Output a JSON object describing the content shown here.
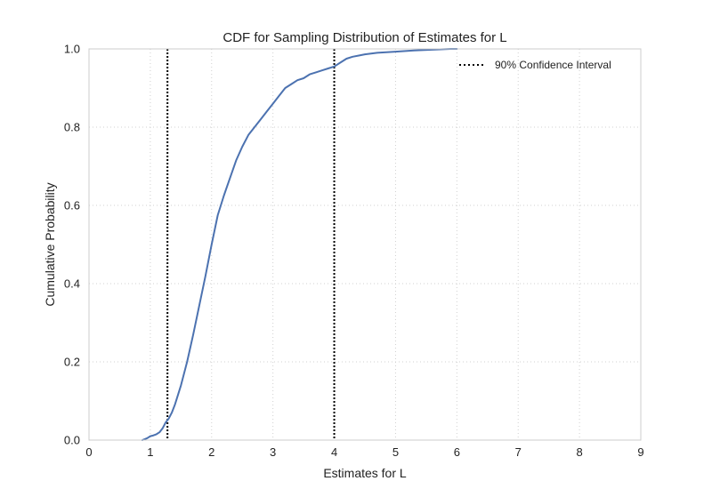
{
  "chart_data": {
    "type": "line",
    "title": "CDF for Sampling Distribution of Estimates for L",
    "xlabel": "Estimates for L",
    "ylabel": "Cumulative Probability",
    "xlim": [
      0,
      9
    ],
    "ylim": [
      0,
      1.0
    ],
    "grid": true,
    "x_ticks": [
      0,
      1,
      2,
      3,
      4,
      5,
      6,
      7,
      8,
      9
    ],
    "x_tick_labels": [
      "0",
      "1",
      "2",
      "3",
      "4",
      "5",
      "6",
      "7",
      "8",
      "9"
    ],
    "y_ticks": [
      0.0,
      0.2,
      0.4,
      0.6,
      0.8,
      1.0
    ],
    "y_tick_labels": [
      "0.0",
      "0.2",
      "0.4",
      "0.6",
      "0.8",
      "1.0"
    ],
    "series": [
      {
        "color": "#4c72b0",
        "x": [
          0.87,
          0.95,
          1.0,
          1.05,
          1.1,
          1.15,
          1.2,
          1.25,
          1.3,
          1.35,
          1.4,
          1.45,
          1.5,
          1.6,
          1.7,
          1.8,
          1.9,
          2.0,
          2.1,
          2.2,
          2.3,
          2.4,
          2.5,
          2.6,
          2.7,
          2.8,
          2.9,
          3.0,
          3.1,
          3.2,
          3.3,
          3.4,
          3.5,
          3.6,
          3.7,
          3.8,
          3.9,
          4.0,
          4.1,
          4.2,
          4.3,
          4.4,
          4.5,
          4.7,
          5.0,
          5.3,
          5.6,
          5.9,
          6.0
        ],
        "y": [
          0.0,
          0.005,
          0.01,
          0.012,
          0.015,
          0.02,
          0.03,
          0.045,
          0.055,
          0.07,
          0.09,
          0.115,
          0.14,
          0.2,
          0.27,
          0.345,
          0.42,
          0.5,
          0.575,
          0.625,
          0.67,
          0.715,
          0.75,
          0.78,
          0.8,
          0.82,
          0.84,
          0.86,
          0.88,
          0.9,
          0.91,
          0.92,
          0.925,
          0.935,
          0.94,
          0.945,
          0.95,
          0.955,
          0.965,
          0.975,
          0.98,
          0.983,
          0.986,
          0.99,
          0.993,
          0.996,
          0.998,
          1.0,
          1.0
        ]
      }
    ],
    "vlines": [
      {
        "x": 1.28,
        "style": "dotted",
        "color": "#000000"
      },
      {
        "x": 4.0,
        "style": "dotted",
        "color": "#000000"
      }
    ],
    "legend": {
      "position": "top-right",
      "entries": [
        {
          "label": "90% Confidence Interval",
          "style": "dotted",
          "color": "#000000"
        }
      ]
    }
  }
}
